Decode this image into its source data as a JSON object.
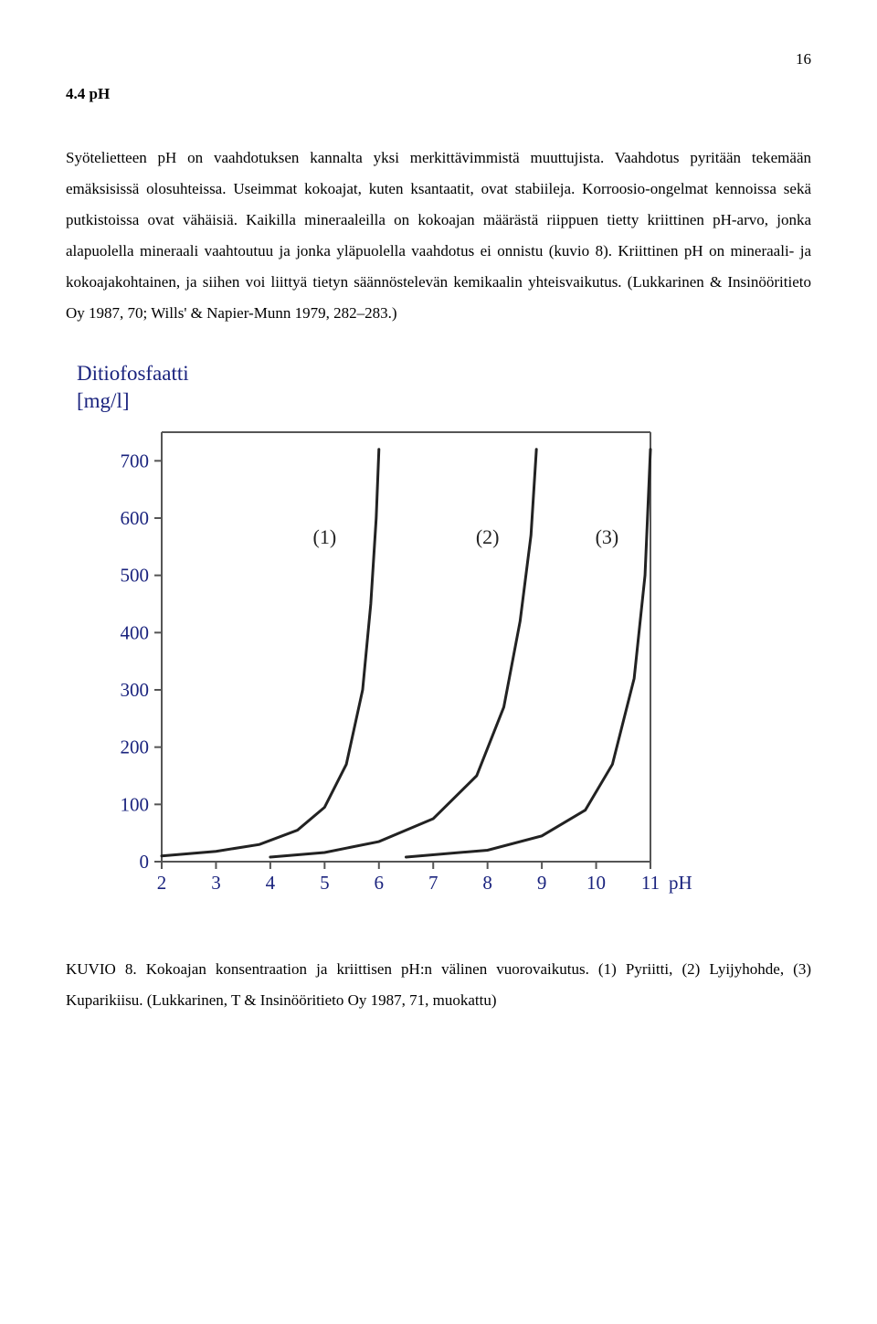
{
  "page_number": "16",
  "section_heading": "4.4 pH",
  "body_paragraph": "Syötelietteen pH on vaahdotuksen kannalta yksi merkittävimmistä muuttujista. Vaahdotus pyritään tekemään emäksisissä olosuhteissa. Useimmat kokoajat, kuten ksantaatit, ovat stabiileja. Korroosio-ongelmat kennoissa sekä putkistoissa ovat vähäisiä. Kaikilla mineraaleilla on kokoajan määrästä riippuen tietty kriittinen pH-arvo, jonka alapuolella mineraali vaahtoutuu ja jonka yläpuolella vaahdotus ei onnistu (kuvio 8). Kriittinen pH on mineraali- ja kokoajakohtainen, ja siihen voi liittyä tietyn säännöstelevän kemikaalin yhteisvaikutus. (Lukkarinen & Insinööritieto Oy 1987, 70; Wills' & Napier-Munn 1979, 282–283.)",
  "figure": {
    "type": "line",
    "y_axis_title": "Ditiofosfaatti",
    "y_axis_unit": "[mg/l]",
    "x_axis_label": "pH",
    "xlim": [
      2,
      11
    ],
    "ylim": [
      0,
      750
    ],
    "x_ticks": [
      2,
      3,
      4,
      5,
      6,
      7,
      8,
      9,
      10,
      11
    ],
    "y_ticks": [
      0,
      100,
      200,
      300,
      400,
      500,
      600,
      700
    ],
    "text_color": "#1a237e",
    "axis_color": "#555555",
    "curve_color": "#222222",
    "curve_width": 3,
    "background_color": "#ffffff",
    "series": [
      {
        "label": "(1)",
        "label_pos_ph": 5.0,
        "label_pos_y": 555,
        "points": [
          {
            "ph": 2.0,
            "y": 10
          },
          {
            "ph": 3.0,
            "y": 18
          },
          {
            "ph": 3.8,
            "y": 30
          },
          {
            "ph": 4.5,
            "y": 55
          },
          {
            "ph": 5.0,
            "y": 95
          },
          {
            "ph": 5.4,
            "y": 170
          },
          {
            "ph": 5.7,
            "y": 300
          },
          {
            "ph": 5.85,
            "y": 450
          },
          {
            "ph": 5.95,
            "y": 600
          },
          {
            "ph": 6.0,
            "y": 720
          }
        ]
      },
      {
        "label": "(2)",
        "label_pos_ph": 8.0,
        "label_pos_y": 555,
        "points": [
          {
            "ph": 4.0,
            "y": 8
          },
          {
            "ph": 5.0,
            "y": 16
          },
          {
            "ph": 6.0,
            "y": 35
          },
          {
            "ph": 7.0,
            "y": 75
          },
          {
            "ph": 7.8,
            "y": 150
          },
          {
            "ph": 8.3,
            "y": 270
          },
          {
            "ph": 8.6,
            "y": 420
          },
          {
            "ph": 8.8,
            "y": 570
          },
          {
            "ph": 8.9,
            "y": 720
          }
        ]
      },
      {
        "label": "(3)",
        "label_pos_ph": 10.2,
        "label_pos_y": 555,
        "points": [
          {
            "ph": 6.5,
            "y": 8
          },
          {
            "ph": 8.0,
            "y": 20
          },
          {
            "ph": 9.0,
            "y": 45
          },
          {
            "ph": 9.8,
            "y": 90
          },
          {
            "ph": 10.3,
            "y": 170
          },
          {
            "ph": 10.7,
            "y": 320
          },
          {
            "ph": 10.9,
            "y": 500
          },
          {
            "ph": 11.0,
            "y": 720
          }
        ]
      }
    ]
  },
  "caption": "KUVIO 8. Kokoajan konsentraation ja kriittisen pH:n välinen vuorovaikutus. (1) Pyriitti, (2) Lyijyhohde, (3) Kuparikiisu. (Lukkarinen, T & Insinööritieto Oy 1987, 71, muokattu)"
}
